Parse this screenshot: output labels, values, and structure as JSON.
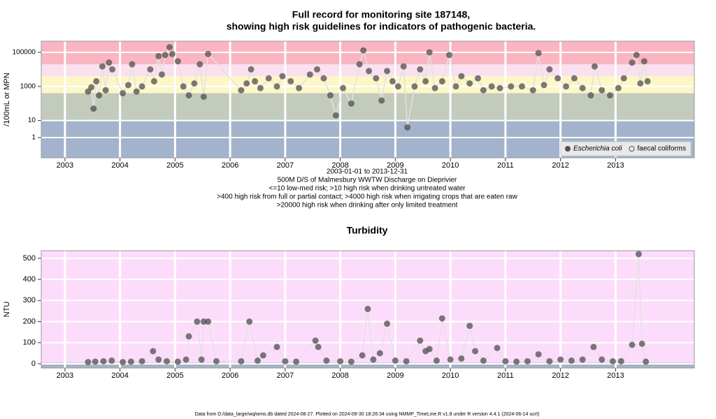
{
  "chart_data": [
    {
      "type": "scatter",
      "title": [
        "Full record for monitoring site 187148,",
        "showing high risk guidelines for indicators of pathogenic bacteria."
      ],
      "notes": [
        "2003-01-01 to 2013-12-31",
        "500M D/S of Malmesbury WWTW Discharge on Dieprivier",
        "<=10 low-med risk; >10 high risk when drinking untreated water",
        ">400 high risk from full or partial contact; >4000 high risk when irrigating crops that are eaten raw",
        ">20000 high risk when drinking after only limited treatment"
      ],
      "ylabel": "/100mL or MPN",
      "log_y": true,
      "grid": true,
      "legend": "lower right",
      "xlim": [
        2002.57,
        2014.43
      ],
      "xticks": [
        2003,
        2004,
        2005,
        2006,
        2007,
        2008,
        2009,
        2010,
        2011,
        2012,
        2013
      ],
      "ylim": [
        0.065,
        450000
      ],
      "yticks": [
        1,
        10,
        1000,
        100000
      ],
      "bands": [
        {
          "color": "#a3b3cb"
        },
        {
          "above": 10,
          "color": "#c3cbbc"
        },
        {
          "above": 400,
          "color": "#fdf6c6"
        },
        {
          "above": 4000,
          "color": "#fbe0ef"
        },
        {
          "above": 20000,
          "color": "#f9b5c1"
        }
      ],
      "series": [
        {
          "name": "Escherichia coli",
          "color": "#505050",
          "marker": "filled",
          "x": [
            2003.42,
            2003.48,
            2003.52,
            2003.57,
            2003.62,
            2003.68,
            2003.74,
            2003.8,
            2003.86,
            2004.05,
            2004.15,
            2004.22,
            2004.3,
            2004.4,
            2004.55,
            2004.62,
            2004.7,
            2004.76,
            2004.82,
            2004.9,
            2004.95,
            2005.05,
            2005.15,
            2005.25,
            2005.35,
            2005.45,
            2005.52,
            2005.6,
            2006.2,
            2006.3,
            2006.38,
            2006.45,
            2006.55,
            2006.7,
            2006.85,
            2006.95,
            2007.1,
            2007.25,
            2007.45,
            2007.58,
            2007.7,
            2007.82,
            2007.92,
            2008.05,
            2008.2,
            2008.35,
            2008.42,
            2008.52,
            2008.65,
            2008.75,
            2008.85,
            2008.95,
            2009.05,
            2009.15,
            2009.22,
            2009.35,
            2009.45,
            2009.55,
            2009.62,
            2009.72,
            2009.85,
            2009.98,
            2010.1,
            2010.2,
            2010.35,
            2010.5,
            2010.6,
            2010.75,
            2010.9,
            2011.1,
            2011.3,
            2011.5,
            2011.6,
            2011.7,
            2011.8,
            2011.95,
            2012.1,
            2012.25,
            2012.4,
            2012.55,
            2012.62,
            2012.75,
            2012.9,
            2013.05,
            2013.15,
            2013.3,
            2013.38,
            2013.45,
            2013.52,
            2013.58
          ],
          "values": [
            500,
            900,
            50,
            2000,
            300,
            15000,
            600,
            25000,
            10000,
            400,
            1200,
            20000,
            500,
            1000,
            10000,
            2000,
            60000,
            5000,
            70000,
            200000,
            80000,
            30000,
            1000,
            300,
            1500,
            20000,
            250,
            80000,
            600,
            1500,
            10000,
            2000,
            800,
            3000,
            1000,
            4000,
            2000,
            800,
            5000,
            10000,
            3000,
            300,
            20,
            800,
            100,
            20000,
            130000,
            8000,
            3000,
            150,
            8000,
            2000,
            1000,
            15000,
            4,
            1000,
            10000,
            2000,
            100000,
            800,
            2000,
            70000,
            1000,
            4000,
            1500,
            3000,
            600,
            1000,
            800,
            1000,
            1000,
            600,
            90000,
            1200,
            10000,
            3000,
            1000,
            3000,
            800,
            300,
            15000,
            600,
            300,
            800,
            3000,
            25000,
            70000,
            1500,
            30000,
            2000
          ]
        },
        {
          "name": "faecal coliforms",
          "color": "#505050",
          "marker": "open",
          "x": [],
          "values": []
        }
      ]
    },
    {
      "type": "scatter",
      "title": [
        "Turbidity"
      ],
      "ylabel": "NTU",
      "log_y": false,
      "grid": true,
      "xlim": [
        2002.57,
        2014.43
      ],
      "xticks": [
        2003,
        2004,
        2005,
        2006,
        2007,
        2008,
        2009,
        2010,
        2011,
        2012,
        2013
      ],
      "ylim": [
        -20,
        536
      ],
      "yticks": [
        0,
        100,
        200,
        300,
        400,
        500
      ],
      "bands": [
        {
          "color": "#a7b4c4"
        },
        {
          "above": 5,
          "color": "#fcdcfb"
        }
      ],
      "series": [
        {
          "name": "Turbidity",
          "color": "#505050",
          "marker": "filled",
          "x": [
            2003.42,
            2003.55,
            2003.7,
            2003.85,
            2004.05,
            2004.2,
            2004.4,
            2004.6,
            2004.7,
            2004.85,
            2005.05,
            2005.2,
            2005.25,
            2005.4,
            2005.48,
            2005.52,
            2005.6,
            2005.75,
            2006.2,
            2006.35,
            2006.5,
            2006.6,
            2006.85,
            2007.0,
            2007.2,
            2007.55,
            2007.6,
            2007.75,
            2008.0,
            2008.2,
            2008.4,
            2008.5,
            2008.6,
            2008.72,
            2008.85,
            2009.0,
            2009.2,
            2009.45,
            2009.55,
            2009.62,
            2009.75,
            2009.85,
            2010.0,
            2010.2,
            2010.35,
            2010.45,
            2010.6,
            2010.85,
            2011.0,
            2011.2,
            2011.4,
            2011.6,
            2011.8,
            2012.0,
            2012.2,
            2012.4,
            2012.6,
            2012.75,
            2012.95,
            2013.1,
            2013.3,
            2013.42,
            2013.48,
            2013.55
          ],
          "values": [
            8,
            10,
            12,
            15,
            8,
            10,
            12,
            60,
            20,
            12,
            10,
            20,
            130,
            200,
            20,
            200,
            200,
            12,
            12,
            200,
            15,
            40,
            80,
            12,
            10,
            110,
            80,
            15,
            12,
            10,
            40,
            260,
            20,
            50,
            190,
            15,
            12,
            110,
            60,
            70,
            15,
            215,
            20,
            25,
            180,
            60,
            15,
            75,
            12,
            10,
            12,
            45,
            12,
            20,
            15,
            20,
            80,
            20,
            12,
            12,
            90,
            520,
            95,
            10
          ]
        }
      ]
    }
  ],
  "footer": "Data from D:/data_large/wq/wms.db dated 2024-08-27. Plotted on 2024-09-30 18:26:34 using NMMP_TimeLine.R v1.8 under R version 4.4.1 (2024-06-14 ucrt)"
}
